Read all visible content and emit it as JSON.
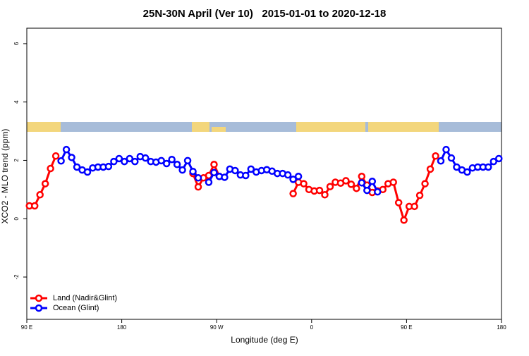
{
  "chart_data": {
    "type": "line",
    "title": "25N-30N April (Ver 10)   2015-01-01 to 2020-12-18",
    "x_label": "Longitude (deg E)",
    "y_label": "XCO2 - MLO trend (ppm)",
    "x": [
      92.5,
      97.5,
      102.5,
      107.5,
      112.5,
      117.5,
      122.5,
      127.5,
      132.5,
      137.5,
      142.5,
      147.5,
      152.5,
      157.5,
      162.5,
      167.5,
      172.5,
      177.5,
      182.5,
      187.5,
      192.5,
      197.5,
      202.5,
      207.5,
      212.5,
      217.5,
      222.5,
      227.5,
      232.5,
      237.5,
      242.5,
      247.5,
      252.5,
      257.5,
      262.5,
      267.5,
      272.5,
      277.5,
      282.5,
      287.5,
      292.5,
      297.5,
      302.5,
      307.5,
      312.5,
      317.5,
      322.5,
      327.5,
      332.5,
      337.5,
      342.5,
      347.5,
      352.5,
      357.5,
      362.5,
      367.5,
      372.5,
      377.5,
      382.5,
      387.5,
      392.5,
      397.5,
      402.5,
      407.5,
      412.5,
      417.5,
      422.5,
      427.5,
      432.5,
      437.5,
      442.5,
      447.5,
      452.5,
      457.5,
      462.5,
      467.5,
      472.5,
      477.5,
      482.5,
      487.5,
      492.5,
      497.5,
      502.5,
      507.5,
      512.5,
      517.5,
      522.5,
      527.5,
      532.5,
      537.5
    ],
    "series": [
      {
        "name": "Land (Nadir&Glint)",
        "color": "#ff0000",
        "values": [
          0.44,
          0.44,
          0.82,
          1.2,
          1.72,
          2.15,
          null,
          null,
          null,
          null,
          null,
          null,
          null,
          null,
          null,
          null,
          null,
          null,
          null,
          null,
          null,
          null,
          null,
          null,
          null,
          null,
          null,
          null,
          null,
          null,
          null,
          1.55,
          1.09,
          1.4,
          1.48,
          1.86,
          1.45,
          null,
          null,
          null,
          null,
          null,
          null,
          null,
          null,
          null,
          null,
          null,
          null,
          null,
          0.86,
          1.25,
          1.2,
          1.0,
          0.95,
          0.97,
          0.82,
          1.1,
          1.25,
          1.22,
          1.3,
          1.18,
          1.04,
          1.45,
          1.15,
          0.9,
          0.95,
          1.0,
          1.2,
          1.25,
          0.55,
          -0.05,
          0.42,
          0.42,
          0.8,
          1.2,
          1.7,
          2.15,
          null,
          null,
          null,
          null,
          null,
          null,
          null,
          null,
          null,
          null,
          null,
          null
        ]
      },
      {
        "name": "Ocean (Glint)",
        "color": "#0000ff",
        "values": [
          null,
          null,
          null,
          null,
          null,
          null,
          1.98,
          2.37,
          2.1,
          1.77,
          1.67,
          1.6,
          1.74,
          1.77,
          1.77,
          1.79,
          1.96,
          2.06,
          1.96,
          2.06,
          1.96,
          2.13,
          2.08,
          1.96,
          1.94,
          1.99,
          1.89,
          2.03,
          1.86,
          1.67,
          1.99,
          1.62,
          1.4,
          null,
          1.25,
          1.58,
          1.45,
          1.42,
          1.7,
          1.65,
          1.5,
          1.48,
          1.7,
          1.6,
          1.65,
          1.68,
          1.63,
          1.55,
          1.55,
          1.5,
          1.35,
          1.45,
          null,
          null,
          null,
          null,
          null,
          null,
          null,
          null,
          null,
          null,
          null,
          1.23,
          0.97,
          1.28,
          0.92,
          null,
          null,
          null,
          null,
          null,
          null,
          null,
          null,
          null,
          null,
          null,
          1.98,
          2.37,
          2.08,
          1.77,
          1.67,
          1.6,
          1.74,
          1.77,
          1.77,
          1.77,
          1.96,
          2.06
        ]
      }
    ],
    "xlim": [
      90,
      540
    ],
    "ylim": [
      -3.45,
      6.53
    ],
    "xticks": [
      {
        "value": 90,
        "label": "90 E"
      },
      180,
      {
        "value": 270,
        "label": "90 W"
      },
      {
        "value": 360,
        "label": "0"
      },
      {
        "value": 450,
        "label": "90 E"
      },
      {
        "value": 540,
        "label": "180"
      }
    ],
    "yticks": [
      -2,
      0,
      2,
      4,
      6
    ],
    "legend": "bottom-left"
  }
}
